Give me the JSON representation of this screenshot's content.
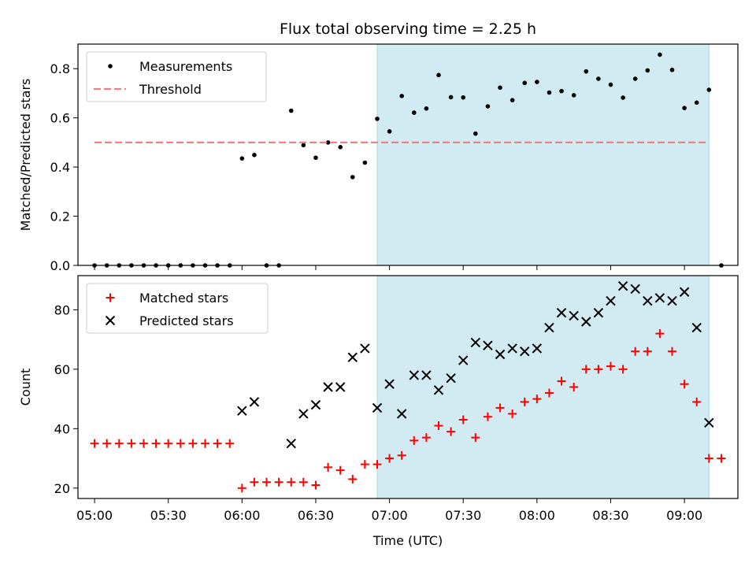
{
  "chart_data": [
    {
      "type": "scatter",
      "title": "Flux total observing time = 2.25 h",
      "xlabel": "",
      "ylabel": "Matched/Predicted stars",
      "ylim": [
        0.0,
        0.9
      ],
      "yticks": [
        "0.0",
        "0.2",
        "0.4",
        "0.6",
        "0.8"
      ],
      "shaded_interval": [
        "06:55",
        "09:10"
      ],
      "shade_color": "#add8e6",
      "legend_position": "upper left",
      "series": [
        {
          "name": "Measurements",
          "marker": "dot",
          "color": "#000000",
          "points": [
            [
              "05:00",
              0.0
            ],
            [
              "05:05",
              0.0
            ],
            [
              "05:10",
              0.0
            ],
            [
              "05:15",
              0.0
            ],
            [
              "05:20",
              0.0
            ],
            [
              "05:25",
              0.0
            ],
            [
              "05:30",
              0.0
            ],
            [
              "05:35",
              0.0
            ],
            [
              "05:40",
              0.0
            ],
            [
              "05:45",
              0.0
            ],
            [
              "05:50",
              0.0
            ],
            [
              "05:55",
              0.0
            ],
            [
              "06:00",
              0.435
            ],
            [
              "06:05",
              0.449
            ],
            [
              "06:10",
              0.0
            ],
            [
              "06:15",
              0.0
            ],
            [
              "06:20",
              0.629
            ],
            [
              "06:25",
              0.489
            ],
            [
              "06:30",
              0.438
            ],
            [
              "06:35",
              0.5
            ],
            [
              "06:40",
              0.481
            ],
            [
              "06:45",
              0.359
            ],
            [
              "06:50",
              0.418
            ],
            [
              "06:55",
              0.596
            ],
            [
              "07:00",
              0.545
            ],
            [
              "07:05",
              0.689
            ],
            [
              "07:10",
              0.621
            ],
            [
              "07:15",
              0.638
            ],
            [
              "07:20",
              0.774
            ],
            [
              "07:25",
              0.684
            ],
            [
              "07:30",
              0.683
            ],
            [
              "07:35",
              0.536
            ],
            [
              "07:40",
              0.647
            ],
            [
              "07:45",
              0.723
            ],
            [
              "07:50",
              0.672
            ],
            [
              "07:55",
              0.742
            ],
            [
              "08:00",
              0.746
            ],
            [
              "08:05",
              0.703
            ],
            [
              "08:10",
              0.709
            ],
            [
              "08:15",
              0.692
            ],
            [
              "08:20",
              0.789
            ],
            [
              "08:25",
              0.759
            ],
            [
              "08:30",
              0.735
            ],
            [
              "08:35",
              0.682
            ],
            [
              "08:40",
              0.759
            ],
            [
              "08:45",
              0.793
            ],
            [
              "08:50",
              0.857
            ],
            [
              "08:55",
              0.795
            ],
            [
              "09:00",
              0.64
            ],
            [
              "09:05",
              0.662
            ],
            [
              "09:10",
              0.714
            ],
            [
              "09:15",
              0.0
            ]
          ]
        },
        {
          "name": "Threshold",
          "marker": "dashed-line",
          "color": "#f08080",
          "points": [
            [
              "05:00",
              0.5
            ],
            [
              "09:10",
              0.5
            ]
          ]
        }
      ]
    },
    {
      "type": "scatter",
      "title": "",
      "xlabel": "Time (UTC)",
      "ylabel": "Count",
      "ylim": [
        16.5,
        91.5
      ],
      "yticks": [
        "20",
        "40",
        "60",
        "80"
      ],
      "xticks": [
        "05:00",
        "05:30",
        "06:00",
        "06:30",
        "07:00",
        "07:30",
        "08:00",
        "08:30",
        "09:00"
      ],
      "shaded_interval": [
        "06:55",
        "09:10"
      ],
      "shade_color": "#add8e6",
      "legend_position": "upper left",
      "series": [
        {
          "name": "Matched stars",
          "marker": "plus",
          "color": "#ff0000",
          "points": [
            [
              "05:00",
              35
            ],
            [
              "05:05",
              35
            ],
            [
              "05:10",
              35
            ],
            [
              "05:15",
              35
            ],
            [
              "05:20",
              35
            ],
            [
              "05:25",
              35
            ],
            [
              "05:30",
              35
            ],
            [
              "05:35",
              35
            ],
            [
              "05:40",
              35
            ],
            [
              "05:45",
              35
            ],
            [
              "05:50",
              35
            ],
            [
              "05:55",
              35
            ],
            [
              "06:00",
              20
            ],
            [
              "06:05",
              22
            ],
            [
              "06:10",
              22
            ],
            [
              "06:15",
              22
            ],
            [
              "06:20",
              22
            ],
            [
              "06:25",
              22
            ],
            [
              "06:30",
              21
            ],
            [
              "06:35",
              27
            ],
            [
              "06:40",
              26
            ],
            [
              "06:45",
              23
            ],
            [
              "06:50",
              28
            ],
            [
              "06:55",
              28
            ],
            [
              "07:00",
              30
            ],
            [
              "07:05",
              31
            ],
            [
              "07:10",
              36
            ],
            [
              "07:15",
              37
            ],
            [
              "07:20",
              41
            ],
            [
              "07:25",
              39
            ],
            [
              "07:30",
              43
            ],
            [
              "07:35",
              37
            ],
            [
              "07:40",
              44
            ],
            [
              "07:45",
              47
            ],
            [
              "07:50",
              45
            ],
            [
              "07:55",
              49
            ],
            [
              "08:00",
              50
            ],
            [
              "08:05",
              52
            ],
            [
              "08:10",
              56
            ],
            [
              "08:15",
              54
            ],
            [
              "08:20",
              60
            ],
            [
              "08:25",
              60
            ],
            [
              "08:30",
              61
            ],
            [
              "08:35",
              60
            ],
            [
              "08:40",
              66
            ],
            [
              "08:45",
              66
            ],
            [
              "08:50",
              72
            ],
            [
              "08:55",
              66
            ],
            [
              "09:00",
              55
            ],
            [
              "09:05",
              49
            ],
            [
              "09:10",
              30
            ],
            [
              "09:15",
              30
            ]
          ]
        },
        {
          "name": "Predicted stars",
          "marker": "x",
          "color": "#000000",
          "points": [
            [
              "06:00",
              46
            ],
            [
              "06:05",
              49
            ],
            [
              "06:20",
              35
            ],
            [
              "06:25",
              45
            ],
            [
              "06:30",
              48
            ],
            [
              "06:35",
              54
            ],
            [
              "06:40",
              54
            ],
            [
              "06:45",
              64
            ],
            [
              "06:50",
              67
            ],
            [
              "06:55",
              47
            ],
            [
              "07:00",
              55
            ],
            [
              "07:05",
              45
            ],
            [
              "07:10",
              58
            ],
            [
              "07:15",
              58
            ],
            [
              "07:20",
              53
            ],
            [
              "07:25",
              57
            ],
            [
              "07:30",
              63
            ],
            [
              "07:35",
              69
            ],
            [
              "07:40",
              68
            ],
            [
              "07:45",
              65
            ],
            [
              "07:50",
              67
            ],
            [
              "07:55",
              66
            ],
            [
              "08:00",
              67
            ],
            [
              "08:05",
              74
            ],
            [
              "08:10",
              79
            ],
            [
              "08:15",
              78
            ],
            [
              "08:20",
              76
            ],
            [
              "08:25",
              79
            ],
            [
              "08:30",
              83
            ],
            [
              "08:35",
              88
            ],
            [
              "08:40",
              87
            ],
            [
              "08:45",
              83
            ],
            [
              "08:50",
              84
            ],
            [
              "08:55",
              83
            ],
            [
              "09:00",
              86
            ],
            [
              "09:05",
              74
            ],
            [
              "09:10",
              42
            ]
          ]
        }
      ]
    }
  ]
}
